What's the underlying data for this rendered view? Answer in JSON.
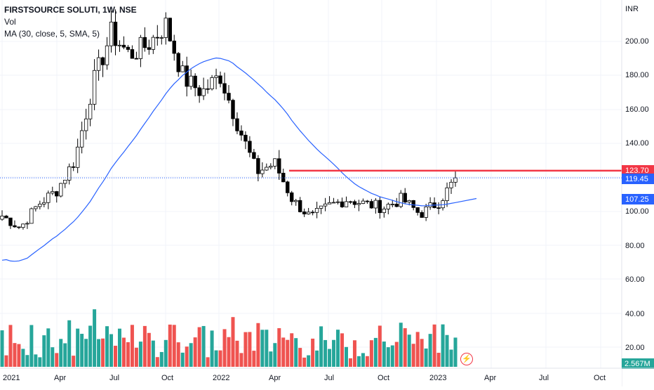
{
  "header": {
    "symbol_line": "FIRSTSOURCE SOLUTI, 1W, NSE",
    "vol_label": "Vol",
    "ma_label": "MA (30, close, 5, SMA, 5)"
  },
  "price_axis": {
    "currency": "INR",
    "ticks": [
      "200.00",
      "180.00",
      "160.00",
      "140.00",
      "100.00",
      "80.00",
      "60.00",
      "40.00",
      "20.00"
    ],
    "badges": {
      "resistance": "123.70",
      "last_price": "119.45",
      "ma_value": "107.25",
      "volume": "2.567M"
    }
  },
  "time_axis": {
    "ticks": [
      "2021",
      "Apr",
      "Jul",
      "Oct",
      "2022",
      "Apr",
      "Jul",
      "Oct",
      "2023",
      "Apr",
      "Jul",
      "Oct"
    ]
  },
  "colors": {
    "up": "#ffffff",
    "down": "#000000",
    "wick": "#000000",
    "vol_up": "#26a69a",
    "vol_down": "#ef5350",
    "ma": "#2962ff",
    "resistance": "#f23645",
    "last_price": "#2962ff"
  },
  "icons": {
    "flash": "lightning-icon"
  },
  "chart_data": {
    "type": "candlestick",
    "interval": "1W",
    "x_range": [
      "2021-01",
      "2023-10"
    ],
    "y_range": [
      78,
      220
    ],
    "resistance_level": 123.7,
    "last_price": 119.45,
    "ma_last": 107.25,
    "price_weekly_close_approx": [
      {
        "x": "2021-01",
        "close": 97
      },
      {
        "x": "2021-02",
        "close": 90
      },
      {
        "x": "2021-03",
        "close": 104
      },
      {
        "x": "2021-04",
        "close": 112
      },
      {
        "x": "2021-05",
        "close": 130
      },
      {
        "x": "2021-06",
        "close": 175
      },
      {
        "x": "2021-07",
        "close": 205
      },
      {
        "x": "2021-08",
        "close": 192
      },
      {
        "x": "2021-09",
        "close": 198
      },
      {
        "x": "2021-10",
        "close": 210
      },
      {
        "x": "2021-11",
        "close": 178
      },
      {
        "x": "2021-12",
        "close": 170
      },
      {
        "x": "2022-01",
        "close": 180
      },
      {
        "x": "2022-02",
        "close": 150
      },
      {
        "x": "2022-03",
        "close": 123
      },
      {
        "x": "2022-04",
        "close": 128
      },
      {
        "x": "2022-05",
        "close": 106
      },
      {
        "x": "2022-06",
        "close": 96
      },
      {
        "x": "2022-07",
        "close": 103
      },
      {
        "x": "2022-08",
        "close": 107
      },
      {
        "x": "2022-09",
        "close": 104
      },
      {
        "x": "2022-10",
        "close": 102
      },
      {
        "x": "2022-11",
        "close": 107
      },
      {
        "x": "2022-12",
        "close": 98
      },
      {
        "x": "2023-01",
        "close": 105
      },
      {
        "x": "2023-02",
        "close": 119.45
      }
    ]
  }
}
